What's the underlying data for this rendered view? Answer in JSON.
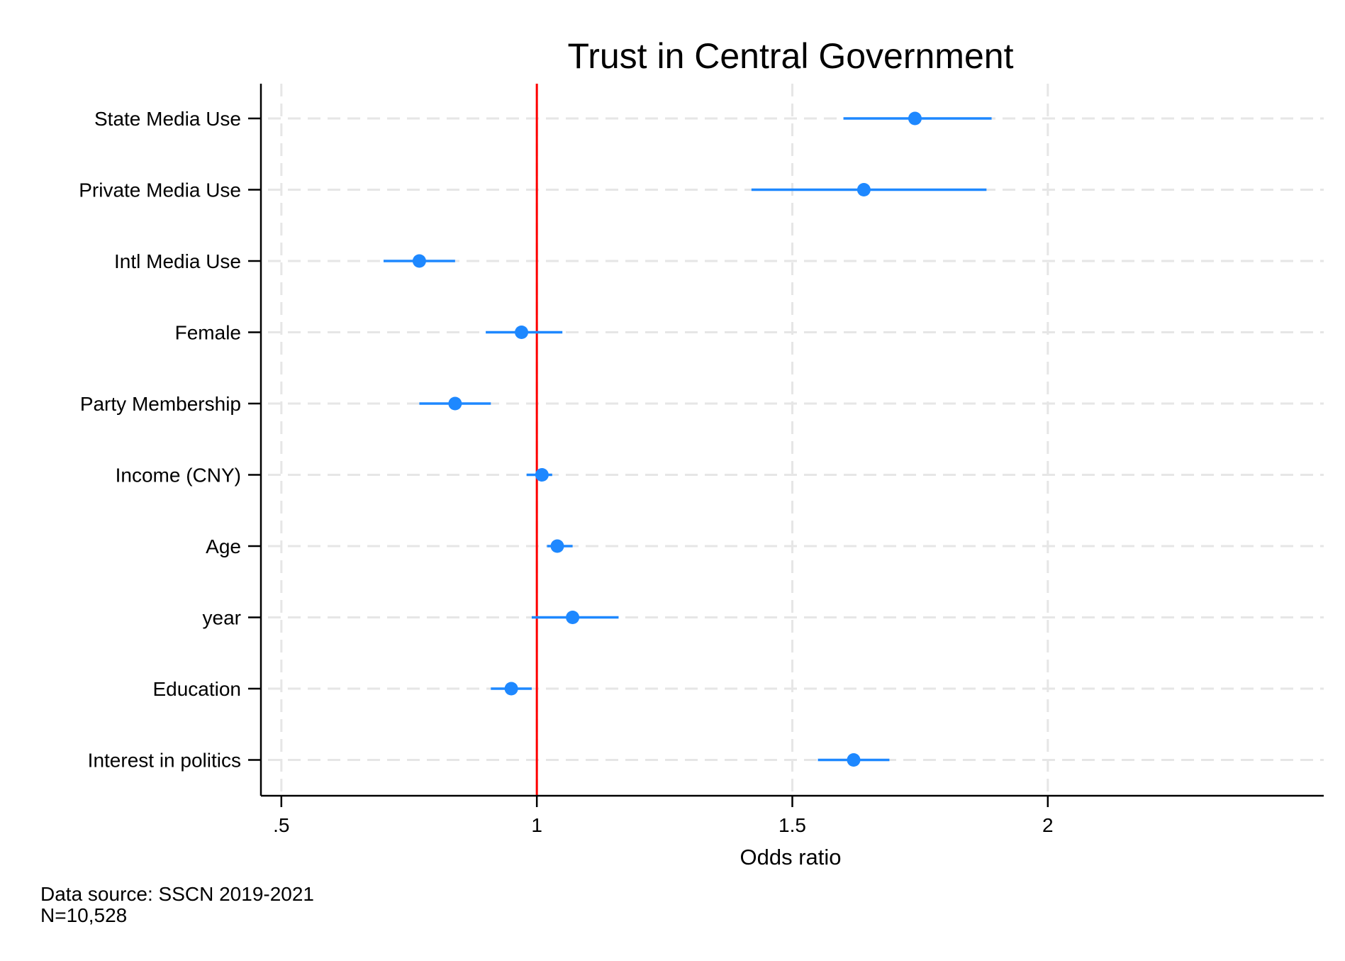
{
  "chart_data": {
    "type": "coefficient-plot",
    "title": "Trust in Central Government",
    "xlabel": "Odds ratio",
    "ylabel": "",
    "xlim": [
      0.46,
      2.54
    ],
    "xticks": [
      0.5,
      1,
      1.5,
      2
    ],
    "xtick_labels": [
      ".5",
      "1",
      "1.5",
      "2"
    ],
    "grid": true,
    "reference_line": {
      "x": 1,
      "color": "#ff0000"
    },
    "marker_color": "#1e88ff",
    "rows": [
      {
        "label": "State Media Use",
        "estimate": 1.74,
        "ci_low": 1.6,
        "ci_high": 1.89
      },
      {
        "label": "Private Media Use",
        "estimate": 1.64,
        "ci_low": 1.42,
        "ci_high": 1.88
      },
      {
        "label": "Intl Media Use",
        "estimate": 0.77,
        "ci_low": 0.7,
        "ci_high": 0.84
      },
      {
        "label": "Female",
        "estimate": 0.97,
        "ci_low": 0.9,
        "ci_high": 1.05
      },
      {
        "label": "Party Membership",
        "estimate": 0.84,
        "ci_low": 0.77,
        "ci_high": 0.91
      },
      {
        "label": "Income (CNY)",
        "estimate": 1.01,
        "ci_low": 0.98,
        "ci_high": 1.03
      },
      {
        "label": "Age",
        "estimate": 1.04,
        "ci_low": 1.02,
        "ci_high": 1.07
      },
      {
        "label": "year",
        "estimate": 1.07,
        "ci_low": 0.99,
        "ci_high": 1.16
      },
      {
        "label": "Education",
        "estimate": 0.95,
        "ci_low": 0.91,
        "ci_high": 0.99
      },
      {
        "label": "Interest in politics",
        "estimate": 1.62,
        "ci_low": 1.55,
        "ci_high": 1.69
      }
    ]
  },
  "notes": {
    "source": "Data source: SSCN 2019-2021",
    "n": "N=10,528"
  }
}
